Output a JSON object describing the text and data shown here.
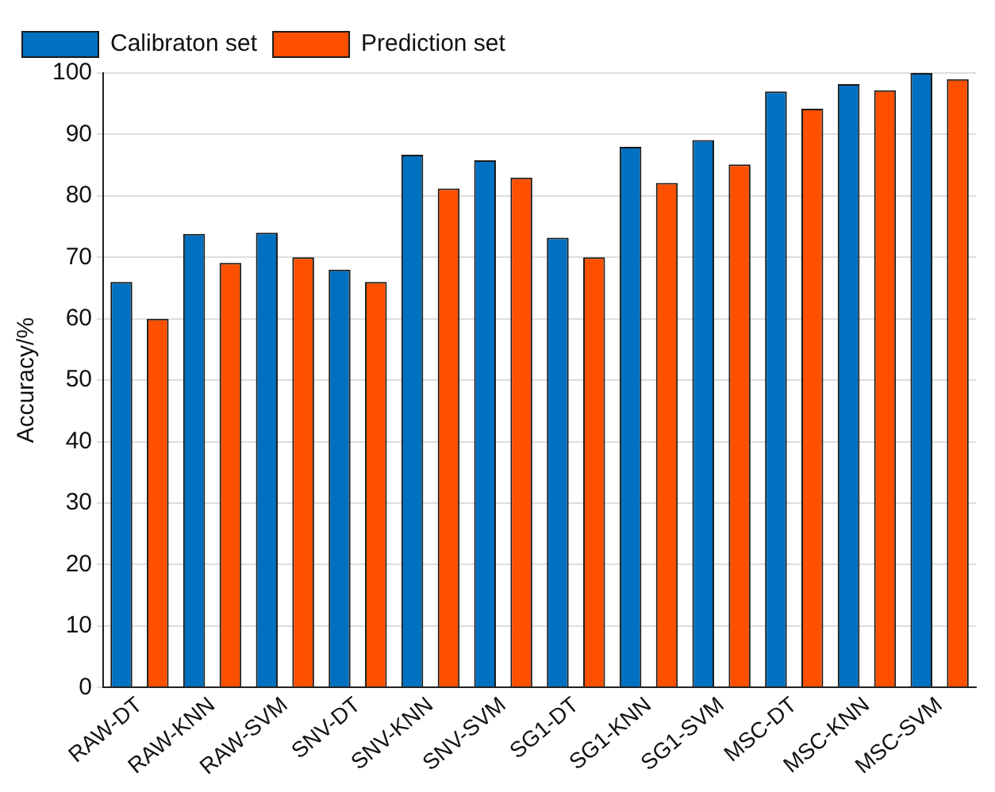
{
  "chart_data": {
    "type": "bar",
    "ylabel": "Accuracy/%",
    "categories": [
      "RAW-DT",
      "RAW-KNN",
      "RAW-SVM",
      "SNV-DT",
      "SNV-KNN",
      "SNV-SVM",
      "SG1-DT",
      "SG1-KNN",
      "SG1-SVM",
      "MSC-DT",
      "MSC-KNN",
      "MSC-SVM"
    ],
    "series": [
      {
        "name": "Calibraton set",
        "color": "#0070c0",
        "values": [
          66,
          73.8,
          74,
          68,
          86.7,
          85.8,
          73.2,
          88,
          89.1,
          97,
          98.2,
          100
        ]
      },
      {
        "name": "Prediction set",
        "color": "#ff5000",
        "values": [
          60,
          69.1,
          70,
          66,
          81.2,
          83,
          70,
          82.1,
          85.1,
          94.2,
          97.2,
          99
        ]
      }
    ],
    "ylim": [
      0,
      100
    ],
    "yticks": [
      0,
      10,
      20,
      30,
      40,
      50,
      60,
      70,
      80,
      90,
      100
    ],
    "grid": "y",
    "legend": "top left"
  }
}
